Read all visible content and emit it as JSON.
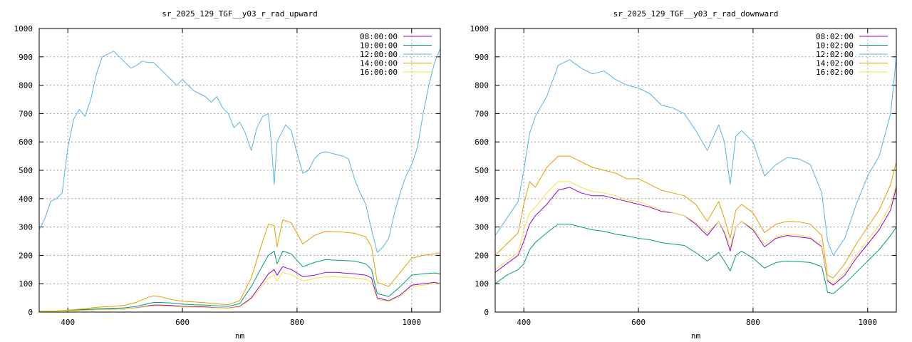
{
  "chart_data": [
    {
      "type": "line",
      "title": "sr_2025_129_TGF__y03_r_rad_upward",
      "xlabel": "nm",
      "ylabel": "",
      "xlim": [
        350,
        1050
      ],
      "ylim": [
        0,
        1000
      ],
      "xticks": [
        400,
        600,
        800,
        1000
      ],
      "yticks": [
        0,
        100,
        200,
        300,
        400,
        500,
        600,
        700,
        800,
        900,
        1000
      ],
      "grid": true,
      "legend_position": "top-right",
      "series": [
        {
          "name": "08:00:00",
          "color": "#9400d3",
          "x": [
            350,
            380,
            400,
            430,
            450,
            480,
            500,
            520,
            540,
            550,
            560,
            580,
            600,
            620,
            640,
            660,
            680,
            700,
            720,
            740,
            750,
            760,
            765,
            775,
            790,
            810,
            830,
            850,
            870,
            880,
            900,
            920,
            930,
            940,
            960,
            980,
            1000,
            1020,
            1040,
            1050
          ],
          "y": [
            2,
            3,
            5,
            7,
            9,
            10,
            11,
            15,
            22,
            25,
            25,
            23,
            20,
            19,
            18,
            15,
            14,
            20,
            50,
            105,
            135,
            150,
            130,
            160,
            150,
            125,
            130,
            140,
            140,
            138,
            135,
            130,
            120,
            50,
            40,
            60,
            95,
            100,
            105,
            100
          ]
        },
        {
          "name": "10:00:00",
          "color": "#009e73",
          "x": [
            350,
            380,
            400,
            430,
            450,
            480,
            500,
            520,
            540,
            550,
            560,
            580,
            600,
            620,
            640,
            660,
            680,
            700,
            720,
            740,
            750,
            760,
            765,
            775,
            790,
            810,
            830,
            850,
            870,
            880,
            900,
            920,
            930,
            940,
            960,
            980,
            1000,
            1020,
            1040,
            1050
          ],
          "y": [
            3,
            4,
            6,
            9,
            11,
            13,
            15,
            20,
            30,
            34,
            34,
            32,
            28,
            26,
            25,
            22,
            20,
            30,
            90,
            165,
            200,
            215,
            170,
            215,
            205,
            160,
            175,
            185,
            183,
            182,
            180,
            170,
            150,
            65,
            55,
            90,
            130,
            135,
            138,
            135
          ]
        },
        {
          "name": "12:00:00",
          "color": "#56b4e9",
          "x": [
            350,
            360,
            370,
            380,
            390,
            400,
            410,
            420,
            430,
            440,
            450,
            460,
            470,
            480,
            490,
            500,
            510,
            520,
            530,
            540,
            550,
            560,
            570,
            580,
            590,
            600,
            610,
            620,
            630,
            640,
            650,
            660,
            670,
            680,
            690,
            700,
            710,
            720,
            730,
            740,
            750,
            755,
            760,
            765,
            770,
            780,
            790,
            800,
            810,
            820,
            830,
            840,
            850,
            860,
            870,
            880,
            890,
            900,
            910,
            920,
            930,
            940,
            950,
            960,
            970,
            980,
            990,
            1000,
            1010,
            1020,
            1030,
            1040,
            1050
          ],
          "y": [
            290,
            330,
            390,
            400,
            420,
            580,
            680,
            715,
            690,
            750,
            840,
            900,
            910,
            920,
            900,
            880,
            860,
            870,
            885,
            880,
            880,
            860,
            840,
            820,
            800,
            820,
            800,
            780,
            770,
            760,
            740,
            760,
            720,
            700,
            650,
            670,
            630,
            570,
            650,
            690,
            700,
            600,
            450,
            600,
            620,
            660,
            640,
            560,
            490,
            500,
            540,
            560,
            565,
            560,
            555,
            550,
            540,
            470,
            420,
            380,
            290,
            210,
            230,
            260,
            350,
            420,
            480,
            520,
            580,
            700,
            800,
            880,
            930
          ]
        },
        {
          "name": "14:00:00",
          "color": "#e69f00",
          "x": [
            350,
            380,
            400,
            430,
            450,
            480,
            500,
            520,
            540,
            550,
            560,
            580,
            600,
            620,
            640,
            660,
            680,
            700,
            720,
            740,
            750,
            760,
            765,
            775,
            790,
            810,
            830,
            850,
            870,
            880,
            900,
            920,
            930,
            940,
            960,
            980,
            1000,
            1020,
            1040,
            1050
          ],
          "y": [
            3,
            4,
            7,
            12,
            17,
            20,
            24,
            35,
            52,
            57,
            55,
            45,
            38,
            36,
            33,
            29,
            26,
            40,
            120,
            250,
            310,
            305,
            230,
            325,
            315,
            240,
            270,
            285,
            283,
            282,
            278,
            265,
            230,
            105,
            90,
            140,
            190,
            200,
            205,
            210
          ]
        },
        {
          "name": "16:00:00",
          "color": "#f0e442",
          "x": [
            350,
            380,
            400,
            430,
            450,
            480,
            500,
            520,
            540,
            550,
            560,
            580,
            600,
            620,
            640,
            660,
            680,
            700,
            720,
            740,
            750,
            760,
            765,
            775,
            790,
            810,
            830,
            850,
            870,
            880,
            900,
            920,
            930,
            940,
            960,
            980,
            1000,
            1020,
            1040,
            1050
          ],
          "y": [
            2,
            3,
            4,
            6,
            8,
            9,
            11,
            14,
            20,
            22,
            22,
            20,
            18,
            17,
            16,
            14,
            13,
            18,
            45,
            95,
            120,
            130,
            110,
            140,
            132,
            110,
            118,
            125,
            124,
            123,
            120,
            115,
            105,
            45,
            38,
            55,
            90,
            95,
            100,
            100
          ]
        }
      ]
    },
    {
      "type": "line",
      "title": "sr_2025_129_TGF__y03_r_rad_downward",
      "xlabel": "nm",
      "ylabel": "",
      "xlim": [
        350,
        1050
      ],
      "ylim": [
        0,
        1000
      ],
      "xticks": [
        400,
        600,
        800,
        1000
      ],
      "yticks": [
        0,
        100,
        200,
        300,
        400,
        500,
        600,
        700,
        800,
        900,
        1000
      ],
      "grid": true,
      "legend_position": "top-right",
      "series": [
        {
          "name": "08:02:00",
          "color": "#9400d3",
          "x": [
            350,
            370,
            390,
            400,
            410,
            420,
            440,
            460,
            480,
            500,
            520,
            540,
            560,
            580,
            600,
            620,
            640,
            660,
            680,
            700,
            720,
            740,
            750,
            760,
            770,
            780,
            800,
            820,
            840,
            860,
            880,
            900,
            920,
            930,
            940,
            960,
            980,
            1000,
            1020,
            1040,
            1050
          ],
          "y": [
            140,
            170,
            200,
            250,
            310,
            340,
            380,
            430,
            440,
            420,
            410,
            410,
            400,
            390,
            380,
            370,
            355,
            350,
            340,
            310,
            270,
            320,
            280,
            215,
            300,
            320,
            290,
            230,
            260,
            270,
            265,
            260,
            230,
            110,
            95,
            130,
            190,
            240,
            290,
            360,
            440
          ]
        },
        {
          "name": "10:02:00",
          "color": "#009e73",
          "x": [
            350,
            370,
            390,
            400,
            410,
            420,
            440,
            460,
            480,
            500,
            520,
            540,
            560,
            580,
            600,
            620,
            640,
            660,
            680,
            700,
            720,
            740,
            750,
            760,
            770,
            780,
            800,
            820,
            840,
            860,
            880,
            900,
            920,
            930,
            940,
            960,
            980,
            1000,
            1020,
            1040,
            1050
          ],
          "y": [
            100,
            130,
            150,
            170,
            220,
            245,
            280,
            310,
            310,
            300,
            290,
            285,
            275,
            268,
            260,
            255,
            245,
            240,
            235,
            210,
            180,
            210,
            180,
            145,
            200,
            215,
            190,
            155,
            175,
            180,
            178,
            175,
            160,
            70,
            65,
            100,
            140,
            180,
            220,
            270,
            300
          ]
        },
        {
          "name": "12:02:00",
          "color": "#56b4e9",
          "x": [
            350,
            370,
            390,
            400,
            410,
            420,
            440,
            460,
            480,
            500,
            520,
            540,
            560,
            580,
            600,
            620,
            640,
            660,
            680,
            700,
            720,
            740,
            750,
            760,
            770,
            780,
            800,
            820,
            840,
            860,
            880,
            900,
            920,
            930,
            940,
            960,
            980,
            1000,
            1020,
            1040,
            1050
          ],
          "y": [
            270,
            330,
            390,
            500,
            630,
            690,
            760,
            870,
            890,
            860,
            840,
            850,
            820,
            800,
            790,
            770,
            730,
            720,
            700,
            640,
            570,
            660,
            600,
            450,
            620,
            640,
            600,
            480,
            520,
            545,
            540,
            520,
            420,
            250,
            200,
            260,
            380,
            480,
            550,
            700,
            900
          ]
        },
        {
          "name": "14:02:00",
          "color": "#e69f00",
          "x": [
            350,
            370,
            390,
            400,
            410,
            420,
            440,
            460,
            480,
            500,
            520,
            540,
            560,
            580,
            600,
            620,
            640,
            660,
            680,
            700,
            720,
            740,
            750,
            760,
            770,
            780,
            800,
            820,
            840,
            860,
            880,
            900,
            920,
            930,
            940,
            960,
            980,
            1000,
            1020,
            1040,
            1050
          ],
          "y": [
            200,
            240,
            280,
            380,
            460,
            440,
            510,
            550,
            550,
            530,
            510,
            500,
            490,
            470,
            470,
            450,
            430,
            420,
            410,
            380,
            320,
            390,
            330,
            260,
            360,
            380,
            350,
            280,
            310,
            320,
            318,
            310,
            270,
            130,
            120,
            170,
            240,
            300,
            360,
            450,
            530
          ]
        },
        {
          "name": "16:02:00",
          "color": "#f0e442",
          "x": [
            350,
            370,
            390,
            400,
            410,
            420,
            440,
            460,
            480,
            500,
            520,
            540,
            560,
            580,
            600,
            620,
            640,
            660,
            680,
            700,
            720,
            740,
            750,
            760,
            770,
            780,
            800,
            820,
            840,
            860,
            880,
            900,
            920,
            930,
            940,
            960,
            980,
            1000,
            1020,
            1040,
            1050
          ],
          "y": [
            150,
            180,
            210,
            290,
            350,
            370,
            420,
            460,
            460,
            440,
            425,
            420,
            410,
            395,
            390,
            375,
            360,
            350,
            340,
            315,
            280,
            320,
            285,
            230,
            300,
            320,
            295,
            240,
            265,
            275,
            272,
            265,
            235,
            115,
            100,
            140,
            200,
            255,
            305,
            380,
            450
          ]
        }
      ]
    }
  ]
}
